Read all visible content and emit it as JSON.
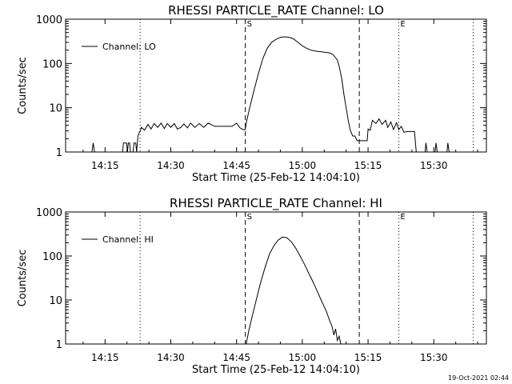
{
  "footer": {
    "timestamp": "19-Oct-2021 02:44"
  },
  "chart_data": [
    {
      "type": "line",
      "title": "RHESSI PARTICLE_RATE Channel: LO",
      "xlabel": "Start Time (25-Feb-12 14:04:10)",
      "ylabel": "Counts/sec",
      "yscale": "log",
      "ylim": [
        1,
        1000
      ],
      "xlim": [
        "14:06",
        "15:42"
      ],
      "x_ticks": [
        "14:15",
        "14:30",
        "14:45",
        "15:00",
        "15:15",
        "15:30"
      ],
      "y_ticks": [
        "1",
        "10",
        "100",
        "1000"
      ],
      "legend": {
        "placement": "top-left",
        "entries": [
          "Channel: LO"
        ]
      },
      "markers": [
        {
          "label": "",
          "time": "14:23",
          "style": "dotted"
        },
        {
          "label": "S",
          "time": "14:47",
          "style": "dashed"
        },
        {
          "label": "",
          "time": "15:13",
          "style": "dashed"
        },
        {
          "label": "E",
          "time": "15:22",
          "style": "dotted"
        },
        {
          "label": "",
          "time": "15:39",
          "style": "dotted"
        }
      ],
      "series": [
        {
          "points": [
            [
              "14:12.0",
              1
            ],
            [
              "14:12.3",
              1.6
            ],
            [
              "14:12.6",
              1
            ],
            [
              "14:19.0",
              1
            ],
            [
              "14:19.2",
              1.6
            ],
            [
              "14:19.9",
              1.6
            ],
            [
              "14:20.1",
              1
            ],
            [
              "14:20.3",
              1.6
            ],
            [
              "14:20.6",
              1.6
            ],
            [
              "14:20.8",
              1
            ],
            [
              "14:21.4",
              1
            ],
            [
              "14:21.6",
              1.6
            ],
            [
              "14:22.0",
              1.6
            ],
            [
              "14:22.2",
              1
            ],
            [
              "14:22.5",
              2.3
            ],
            [
              "14:22.9",
              2.9
            ],
            [
              "14:23.0",
              2.9
            ],
            [
              "14:23.3",
              3.6
            ],
            [
              "14:24.0",
              3.1
            ],
            [
              "14:24.8",
              4.2
            ],
            [
              "14:25.5",
              3.3
            ],
            [
              "14:26.2",
              4.4
            ],
            [
              "14:27.0",
              3.6
            ],
            [
              "14:27.8",
              4.5
            ],
            [
              "14:28.5",
              3.4
            ],
            [
              "14:29.2",
              4.4
            ],
            [
              "14:30.0",
              3.6
            ],
            [
              "14:30.8",
              4.4
            ],
            [
              "14:31.5",
              3.3
            ],
            [
              "14:32.3",
              3.6
            ],
            [
              "14:33.0",
              4.3
            ],
            [
              "14:33.8",
              3.5
            ],
            [
              "14:34.5",
              4.5
            ],
            [
              "14:35.5",
              3.6
            ],
            [
              "14:36.5",
              4.4
            ],
            [
              "14:37.5",
              3.6
            ],
            [
              "14:38.5",
              4.5
            ],
            [
              "14:40.0",
              3.8
            ],
            [
              "14:42.0",
              3.8
            ],
            [
              "14:44.0",
              3.8
            ],
            [
              "14:45.0",
              4.5
            ],
            [
              "14:45.8",
              3.5
            ],
            [
              "14:46.5",
              3.2
            ],
            [
              "14:47.0",
              3.2
            ],
            [
              "14:47.2",
              4.5
            ],
            [
              "14:48.0",
              10
            ],
            [
              "14:49.0",
              25
            ],
            [
              "14:50.0",
              60
            ],
            [
              "14:51.0",
              130
            ],
            [
              "14:52.0",
              220
            ],
            [
              "14:53.0",
              300
            ],
            [
              "14:54.0",
              350
            ],
            [
              "14:55.0",
              390
            ],
            [
              "14:56.0",
              400
            ],
            [
              "14:57.0",
              390
            ],
            [
              "14:58.0",
              360
            ],
            [
              "14:59.0",
              300
            ],
            [
              "15:00.0",
              250
            ],
            [
              "15:01.0",
              220
            ],
            [
              "15:02.0",
              200
            ],
            [
              "15:03.0",
              190
            ],
            [
              "15:04.0",
              185
            ],
            [
              "15:05.0",
              180
            ],
            [
              "15:06.0",
              175
            ],
            [
              "15:07.0",
              160
            ],
            [
              "15:08.0",
              120
            ],
            [
              "15:08.5",
              80
            ],
            [
              "15:09.0",
              45
            ],
            [
              "15:09.5",
              20
            ],
            [
              "15:10.0",
              10
            ],
            [
              "15:10.5",
              5
            ],
            [
              "15:11.0",
              3
            ],
            [
              "15:11.5",
              2.3
            ],
            [
              "15:12.0",
              2.3
            ],
            [
              "15:12.5",
              1.8
            ],
            [
              "15:13.0",
              1.8
            ],
            [
              "15:14.0",
              1.8
            ],
            [
              "15:14.8",
              1.8
            ],
            [
              "15:15.0",
              3.3
            ],
            [
              "15:15.5",
              3.1
            ],
            [
              "15:16.0",
              5.2
            ],
            [
              "15:16.8",
              4.4
            ],
            [
              "15:17.5",
              5.6
            ],
            [
              "15:18.2",
              4.2
            ],
            [
              "15:19.0",
              5.2
            ],
            [
              "15:19.5",
              3.6
            ],
            [
              "15:20.2",
              4.8
            ],
            [
              "15:20.8",
              3.2
            ],
            [
              "15:21.5",
              4.6
            ],
            [
              "15:22.0",
              3.2
            ],
            [
              "15:22.6",
              3.8
            ],
            [
              "15:23.2",
              2.8
            ],
            [
              "15:24.0",
              2.9
            ],
            [
              "15:25.0",
              2.9
            ],
            [
              "15:25.6",
              2.9
            ],
            [
              "15:26.0",
              1
            ],
            [
              "15:28.0",
              1
            ],
            [
              "15:28.2",
              1.6
            ],
            [
              "15:28.5",
              1
            ],
            [
              "15:30.3",
              1
            ],
            [
              "15:30.5",
              1.6
            ],
            [
              "15:30.8",
              1
            ],
            [
              "15:33.0",
              1
            ],
            [
              "15:33.2",
              1.6
            ],
            [
              "15:33.5",
              1
            ]
          ]
        }
      ]
    },
    {
      "type": "line",
      "title": "RHESSI PARTICLE_RATE Channel: HI",
      "xlabel": "Start Time (25-Feb-12 14:04:10)",
      "ylabel": "Counts/sec",
      "yscale": "log",
      "ylim": [
        1,
        1000
      ],
      "xlim": [
        "14:06",
        "15:42"
      ],
      "x_ticks": [
        "14:15",
        "14:30",
        "14:45",
        "15:00",
        "15:15",
        "15:30"
      ],
      "y_ticks": [
        "1",
        "10",
        "100",
        "1000"
      ],
      "legend": {
        "placement": "top-left",
        "entries": [
          "Channel: HI"
        ]
      },
      "markers": [
        {
          "label": "",
          "time": "14:23",
          "style": "dotted"
        },
        {
          "label": "S",
          "time": "14:47",
          "style": "dashed"
        },
        {
          "label": "",
          "time": "15:13",
          "style": "dashed"
        },
        {
          "label": "E",
          "time": "15:22",
          "style": "dotted"
        },
        {
          "label": "",
          "time": "15:39",
          "style": "dotted"
        }
      ],
      "series": [
        {
          "points": [
            [
              "14:47.2",
              1
            ],
            [
              "14:47.8",
              2
            ],
            [
              "14:48.5",
              4
            ],
            [
              "14:49.5",
              10
            ],
            [
              "14:50.5",
              25
            ],
            [
              "14:51.5",
              55
            ],
            [
              "14:52.5",
              110
            ],
            [
              "14:53.5",
              170
            ],
            [
              "14:54.5",
              230
            ],
            [
              "14:55.5",
              270
            ],
            [
              "14:56.5",
              260
            ],
            [
              "14:57.5",
              210
            ],
            [
              "14:58.5",
              150
            ],
            [
              "14:59.5",
              100
            ],
            [
              "15:00.5",
              65
            ],
            [
              "15:01.5",
              40
            ],
            [
              "15:02.5",
              25
            ],
            [
              "15:03.5",
              15
            ],
            [
              "15:04.5",
              9
            ],
            [
              "15:05.5",
              5.5
            ],
            [
              "15:06.2",
              3.5
            ],
            [
              "15:06.8",
              2.5
            ],
            [
              "15:07.2",
              1.6
            ],
            [
              "15:07.6",
              2.2
            ],
            [
              "15:08.0",
              1.2
            ],
            [
              "15:08.4",
              1.5
            ],
            [
              "15:08.8",
              1
            ]
          ]
        }
      ]
    }
  ]
}
